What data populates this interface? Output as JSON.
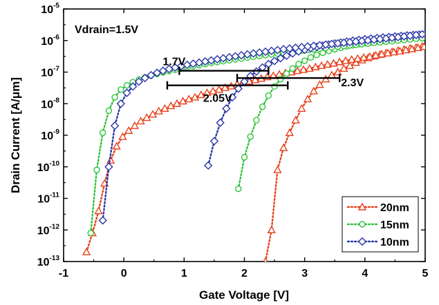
{
  "chart_data": {
    "type": "line",
    "xlabel": "Gate Voltage [V]",
    "ylabel": "Drain Current [A/μm]",
    "yscale": "log",
    "xlim": [
      -1,
      5
    ],
    "ylim": [
      1e-13,
      1e-05
    ],
    "xticks": [
      "-1",
      "0",
      "1",
      "2",
      "3",
      "4",
      "5"
    ],
    "yticks": [
      {
        "base": "10",
        "exp": "-13"
      },
      {
        "base": "10",
        "exp": "-12"
      },
      {
        "base": "10",
        "exp": "-11"
      },
      {
        "base": "10",
        "exp": "-10"
      },
      {
        "base": "10",
        "exp": "-9"
      },
      {
        "base": "10",
        "exp": "-8"
      },
      {
        "base": "10",
        "exp": "-7"
      },
      {
        "base": "10",
        "exp": "-6"
      },
      {
        "base": "10",
        "exp": "-5"
      }
    ],
    "annotation_condition": "Vdrain=1.5V",
    "legend_position": "bottom-right",
    "series": [
      {
        "name": "20nm",
        "color": "#e8401c",
        "marker": "triangle",
        "forward": {
          "x": [
            2.35,
            2.45,
            2.55,
            2.65,
            2.75,
            2.85,
            2.95,
            3.05,
            3.15,
            3.25,
            3.35,
            3.45,
            3.55,
            3.65,
            3.75,
            3.85,
            3.95,
            4.05,
            4.15,
            4.25,
            4.35,
            4.45,
            4.55,
            4.65,
            4.75,
            4.85,
            4.95
          ],
          "y": [
            1e-13,
            1e-12,
            8e-11,
            4e-10,
            1.2e-09,
            3e-09,
            7e-09,
            1.4e-08,
            2.5e-08,
            4e-08,
            6e-08,
            8e-08,
            1e-07,
            1.3e-07,
            1.6e-07,
            2e-07,
            2.4e-07,
            2.8e-07,
            3.2e-07,
            3.6e-07,
            4e-07,
            4.4e-07,
            4.8e-07,
            5.2e-07,
            5.6e-07,
            6e-07,
            6.5e-07
          ]
        },
        "reverse": {
          "x": [
            -0.62,
            -0.52,
            -0.42,
            -0.32,
            -0.22,
            -0.12,
            -0.02,
            0.08,
            0.18,
            0.28,
            0.38,
            0.48,
            0.58,
            0.68,
            0.78,
            0.88,
            0.98,
            1.08,
            1.18,
            1.28,
            1.38,
            1.48,
            1.58,
            1.68,
            1.78,
            1.88,
            1.98,
            2.08,
            2.18,
            2.28,
            2.38,
            2.48,
            2.58,
            2.68,
            2.78,
            2.88,
            2.98,
            3.08,
            3.18,
            3.28,
            3.38,
            3.48,
            3.58,
            3.68,
            3.78,
            3.88,
            3.98,
            4.08,
            4.18,
            4.28,
            4.38,
            4.48,
            4.58,
            4.68,
            4.78,
            4.88,
            4.98
          ],
          "y": [
            2e-13,
            8e-13,
            4e-12,
            3e-11,
            1.6e-10,
            4.5e-10,
            9e-10,
            1.4e-09,
            2e-09,
            2.8e-09,
            3.6e-09,
            4.6e-09,
            5.8e-09,
            7e-09,
            8.5e-09,
            1e-08,
            1.2e-08,
            1.4e-08,
            1.6e-08,
            1.9e-08,
            2.2e-08,
            2.5e-08,
            2.8e-08,
            3.2e-08,
            3.6e-08,
            4.1e-08,
            4.6e-08,
            5.1e-08,
            5.7e-08,
            6.3e-08,
            7e-08,
            7.7e-08,
            8.5e-08,
            9.3e-08,
            1e-07,
            1.1e-07,
            1.2e-07,
            1.3e-07,
            1.45e-07,
            1.6e-07,
            1.75e-07,
            1.9e-07,
            2.1e-07,
            2.3e-07,
            2.5e-07,
            2.7e-07,
            2.9e-07,
            3.1e-07,
            3.4e-07,
            3.7e-07,
            4e-07,
            4.3e-07,
            4.6e-07,
            5e-07,
            5.4e-07,
            5.9e-07,
            6.4e-07
          ]
        }
      },
      {
        "name": "15nm",
        "color": "#2ec43a",
        "marker": "circle",
        "forward": {
          "x": [
            1.9,
            2.0,
            2.1,
            2.2,
            2.3,
            2.4,
            2.5,
            2.6,
            2.7,
            2.8,
            2.9,
            3.0,
            3.1,
            3.2,
            3.3,
            3.4,
            3.5,
            3.6,
            3.7,
            3.8,
            3.9,
            4.0,
            4.1,
            4.2,
            4.3,
            4.4,
            4.5,
            4.6,
            4.7,
            4.8,
            4.9,
            5.0
          ],
          "y": [
            2e-11,
            2e-10,
            9e-10,
            3e-09,
            8e-09,
            1.8e-08,
            3.5e-08,
            6e-08,
            9e-08,
            1.3e-07,
            1.8e-07,
            2.3e-07,
            2.9e-07,
            3.5e-07,
            4.1e-07,
            4.7e-07,
            5.3e-07,
            5.9e-07,
            6.5e-07,
            7.1e-07,
            7.7e-07,
            8.3e-07,
            8.8e-07,
            9.3e-07,
            9.8e-07,
            1.03e-06,
            1.08e-06,
            1.13e-06,
            1.18e-06,
            1.23e-06,
            1.28e-06,
            1.33e-06
          ]
        },
        "reverse": {
          "x": [
            -0.55,
            -0.45,
            -0.35,
            -0.25,
            -0.15,
            -0.05,
            0.05,
            0.15,
            0.25,
            0.35,
            0.45,
            0.55,
            0.65,
            0.75,
            0.85,
            0.95,
            1.05,
            1.15,
            1.25,
            1.35,
            1.45,
            1.55,
            1.65,
            1.75,
            1.85,
            1.95,
            2.05,
            2.15,
            2.25,
            2.35,
            2.45,
            2.55,
            2.65,
            2.75,
            2.85,
            2.95,
            3.05,
            3.15,
            3.25,
            3.35,
            3.45,
            3.55,
            3.65,
            3.75,
            3.85,
            3.95,
            4.05,
            4.15,
            4.25,
            4.35,
            4.45,
            4.55,
            4.65,
            4.75,
            4.85,
            4.95
          ],
          "y": [
            8e-13,
            8e-11,
            1.2e-09,
            6e-09,
            1.6e-08,
            2.8e-08,
            3.8e-08,
            4.8e-08,
            5.8e-08,
            6.8e-08,
            7.8e-08,
            8.8e-08,
            9.8e-08,
            1.08e-07,
            1.18e-07,
            1.3e-07,
            1.42e-07,
            1.54e-07,
            1.66e-07,
            1.8e-07,
            1.94e-07,
            2.08e-07,
            2.22e-07,
            2.38e-07,
            2.54e-07,
            2.7e-07,
            2.88e-07,
            3.06e-07,
            3.25e-07,
            3.45e-07,
            3.65e-07,
            3.86e-07,
            4.08e-07,
            4.3e-07,
            4.53e-07,
            4.77e-07,
            5.02e-07,
            5.28e-07,
            5.55e-07,
            5.83e-07,
            6.12e-07,
            6.42e-07,
            6.73e-07,
            7.05e-07,
            7.38e-07,
            7.72e-07,
            8.07e-07,
            8.43e-07,
            8.8e-07,
            9.18e-07,
            9.57e-07,
            9.97e-07,
            1.04e-06,
            1.08e-06,
            1.13e-06,
            1.18e-06
          ]
        }
      },
      {
        "name": "10nm",
        "color": "#2a37a8",
        "marker": "diamond",
        "forward": {
          "x": [
            1.4,
            1.5,
            1.6,
            1.7,
            1.8,
            1.9,
            2.0,
            2.1,
            2.2,
            2.3,
            2.4,
            2.5,
            2.6,
            2.7,
            2.8,
            2.9,
            3.0,
            3.1,
            3.2,
            3.3,
            3.4,
            3.5,
            3.6,
            3.7,
            3.8,
            3.9,
            4.0,
            4.1,
            4.2,
            4.3,
            4.4,
            4.5,
            4.6,
            4.7,
            4.8,
            4.9,
            5.0
          ],
          "y": [
            1.1e-10,
            6.5e-10,
            2.5e-09,
            7e-09,
            1.6e-08,
            3e-08,
            5e-08,
            7.5e-08,
            1.05e-07,
            1.4e-07,
            1.8e-07,
            2.25e-07,
            2.75e-07,
            3.3e-07,
            3.9e-07,
            4.5e-07,
            5.1e-07,
            5.7e-07,
            6.3e-07,
            6.9e-07,
            7.5e-07,
            8.1e-07,
            8.7e-07,
            9.3e-07,
            9.9e-07,
            1.05e-06,
            1.1e-06,
            1.15e-06,
            1.2e-06,
            1.25e-06,
            1.3e-06,
            1.35e-06,
            1.4e-06,
            1.45e-06,
            1.5e-06,
            1.55e-06,
            1.6e-06
          ]
        },
        "reverse": {
          "x": [
            -0.35,
            -0.25,
            -0.15,
            -0.05,
            0.05,
            0.15,
            0.25,
            0.35,
            0.45,
            0.55,
            0.65,
            0.75,
            0.85,
            0.95,
            1.05,
            1.15,
            1.25,
            1.35,
            1.45,
            1.55,
            1.65,
            1.75,
            1.85,
            1.95,
            2.05,
            2.15,
            2.25,
            2.35,
            2.45,
            2.55,
            2.65,
            2.75,
            2.85,
            2.95,
            3.05,
            3.15,
            3.25,
            3.35,
            3.45,
            3.55,
            3.65,
            3.75,
            3.85,
            3.95,
            4.05,
            4.15,
            4.25,
            4.35,
            4.45,
            4.55,
            4.65,
            4.75,
            4.85,
            4.95
          ],
          "y": [
            2e-12,
            1e-10,
            2e-09,
            1e-08,
            2.2e-08,
            3.5e-08,
            5e-08,
            6.5e-08,
            8e-08,
            9.5e-08,
            1.1e-07,
            1.25e-07,
            1.4e-07,
            1.55e-07,
            1.7e-07,
            1.85e-07,
            2e-07,
            2.17e-07,
            2.35e-07,
            2.55e-07,
            2.75e-07,
            2.96e-07,
            3.18e-07,
            3.41e-07,
            3.65e-07,
            3.9e-07,
            4.16e-07,
            4.43e-07,
            4.71e-07,
            5e-07,
            5.3e-07,
            5.6e-07,
            5.9e-07,
            6.2e-07,
            6.5e-07,
            6.8e-07,
            7.1e-07,
            7.45e-07,
            7.8e-07,
            8.15e-07,
            8.5e-07,
            8.9e-07,
            9.3e-07,
            9.7e-07,
            1.01e-06,
            1.06e-06,
            1.11e-06,
            1.16e-06,
            1.22e-06,
            1.28e-06,
            1.35e-06,
            1.42e-06,
            1.5e-06,
            1.58e-06
          ]
        }
      }
    ],
    "hysteresis_annotations": [
      {
        "label": "1.7V",
        "x_start": 0.92,
        "x_end": 2.4,
        "y": 1.1e-07
      },
      {
        "label": "2.05V",
        "x_start": 0.72,
        "x_end": 2.72,
        "y": 3.8e-08
      },
      {
        "label": "2.3V",
        "x_start": 1.88,
        "x_end": 3.58,
        "y": 6.5e-08
      }
    ]
  }
}
